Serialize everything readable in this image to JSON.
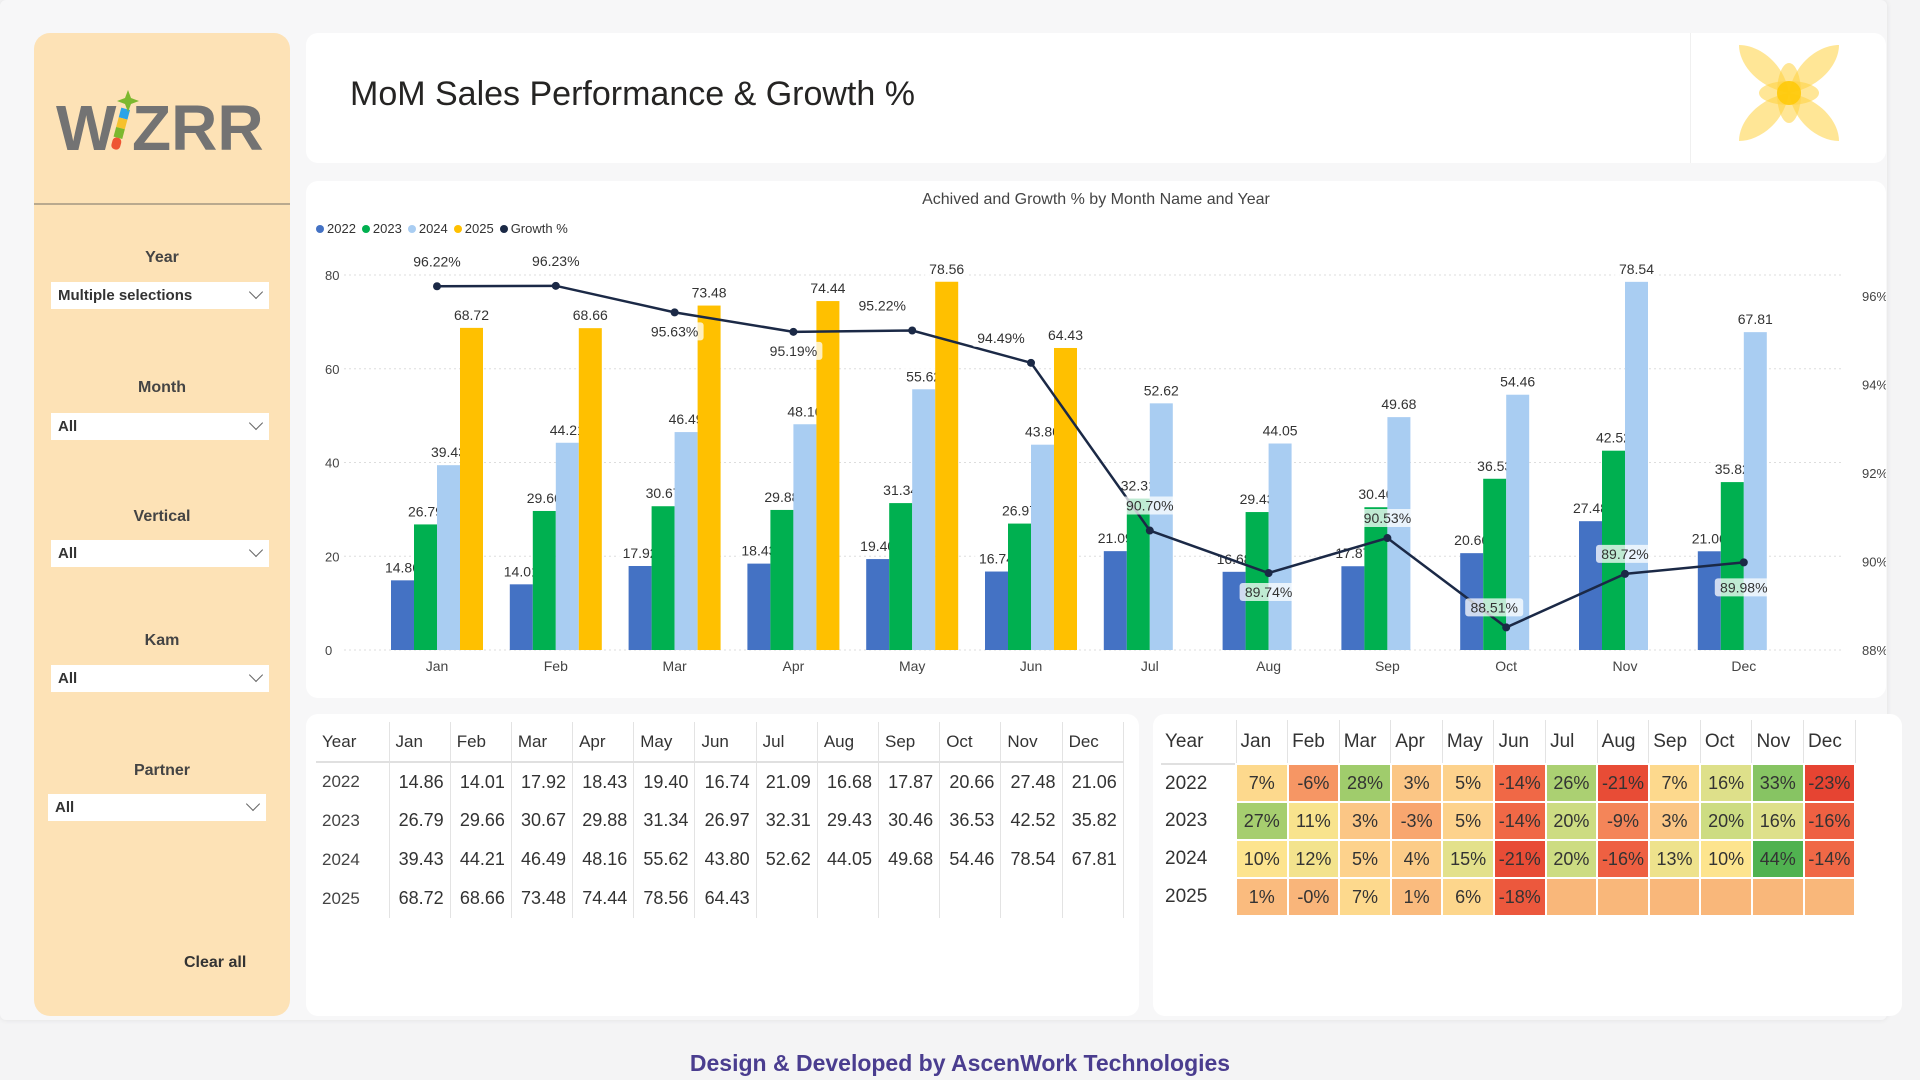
{
  "logo_text": "WIZRR",
  "header": {
    "title": "MoM Sales Performance & Growth %"
  },
  "filters": [
    {
      "label": "Year",
      "value": "Multiple selections"
    },
    {
      "label": "Month",
      "value": "All"
    },
    {
      "label": "Vertical",
      "value": "All"
    },
    {
      "label": "Kam",
      "value": "All"
    },
    {
      "label": "Partner",
      "value": "All"
    }
  ],
  "clear_all_label": "Clear all",
  "footer": "Design & Developed by AscenWork Technologies",
  "chart_data": {
    "type": "bar",
    "title": "Achived and Growth % by Month Name and Year",
    "categories": [
      "Jan",
      "Feb",
      "Mar",
      "Apr",
      "May",
      "Jun",
      "Jul",
      "Aug",
      "Sep",
      "Oct",
      "Nov",
      "Dec"
    ],
    "ylim": [
      0,
      80
    ],
    "yticks": [
      0,
      20,
      40,
      60,
      80
    ],
    "y2lim": [
      88,
      96
    ],
    "y2ticks": [
      "88%",
      "90%",
      "92%",
      "94%",
      "96%"
    ],
    "grid": true,
    "legend_position": "top-left",
    "series": [
      {
        "name": "2022",
        "color": "#4472c4",
        "values": [
          14.86,
          14.01,
          17.92,
          18.43,
          19.4,
          16.74,
          21.09,
          16.68,
          17.87,
          20.66,
          27.48,
          21.06
        ]
      },
      {
        "name": "2023",
        "color": "#00b050",
        "values": [
          26.79,
          29.66,
          30.67,
          29.88,
          31.34,
          26.97,
          32.31,
          29.43,
          30.46,
          36.53,
          42.52,
          35.82
        ]
      },
      {
        "name": "2024",
        "color": "#a9cdf2",
        "values": [
          39.43,
          44.21,
          46.49,
          48.16,
          55.62,
          43.8,
          52.62,
          44.05,
          49.68,
          54.46,
          78.54,
          67.81
        ]
      },
      {
        "name": "2025",
        "color": "#ffc000",
        "values": [
          68.72,
          68.66,
          73.48,
          74.44,
          78.56,
          64.43,
          null,
          null,
          null,
          null,
          null,
          null
        ]
      }
    ],
    "line_series": {
      "name": "Growth %",
      "color": "#1b2946",
      "type": "line",
      "axis": "right",
      "values": [
        96.22,
        96.23,
        95.63,
        95.19,
        95.22,
        94.49,
        90.7,
        89.74,
        90.53,
        88.51,
        89.72,
        89.98
      ]
    }
  },
  "sales_table": {
    "headers": [
      "Year",
      "Jan",
      "Feb",
      "Mar",
      "Apr",
      "May",
      "Jun",
      "Jul",
      "Aug",
      "Sep",
      "Oct",
      "Nov",
      "Dec"
    ],
    "rows": [
      [
        "2022",
        "14.86",
        "14.01",
        "17.92",
        "18.43",
        "19.40",
        "16.74",
        "21.09",
        "16.68",
        "17.87",
        "20.66",
        "27.48",
        "21.06"
      ],
      [
        "2023",
        "26.79",
        "29.66",
        "30.67",
        "29.88",
        "31.34",
        "26.97",
        "32.31",
        "29.43",
        "30.46",
        "36.53",
        "42.52",
        "35.82"
      ],
      [
        "2024",
        "39.43",
        "44.21",
        "46.49",
        "48.16",
        "55.62",
        "43.80",
        "52.62",
        "44.05",
        "49.68",
        "54.46",
        "78.54",
        "67.81"
      ],
      [
        "2025",
        "68.72",
        "68.66",
        "73.48",
        "74.44",
        "78.56",
        "64.43",
        "",
        "",
        "",
        "",
        "",
        ""
      ]
    ]
  },
  "growth_table": {
    "headers": [
      "Year",
      "Jan",
      "Feb",
      "Mar",
      "Apr",
      "May",
      "Jun",
      "Jul",
      "Aug",
      "Sep",
      "Oct",
      "Nov",
      "Dec"
    ],
    "rows": [
      {
        "year": "2022",
        "cells": [
          "7%",
          "-6%",
          "28%",
          "3%",
          "5%",
          "-14%",
          "26%",
          "-21%",
          "7%",
          "16%",
          "33%",
          "-23%"
        ]
      },
      {
        "year": "2023",
        "cells": [
          "27%",
          "11%",
          "3%",
          "-3%",
          "5%",
          "-14%",
          "20%",
          "-9%",
          "3%",
          "20%",
          "16%",
          "-16%"
        ]
      },
      {
        "year": "2024",
        "cells": [
          "10%",
          "12%",
          "5%",
          "4%",
          "15%",
          "-21%",
          "20%",
          "-16%",
          "13%",
          "10%",
          "44%",
          "-14%"
        ]
      },
      {
        "year": "2025",
        "cells": [
          "1%",
          "-0%",
          "7%",
          "1%",
          "6%",
          "-18%",
          "",
          "",
          "",
          "",
          "",
          ""
        ]
      }
    ]
  }
}
